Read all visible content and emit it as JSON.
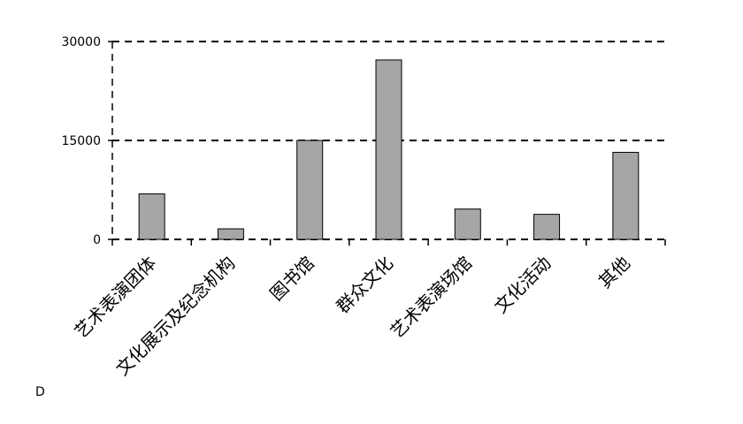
{
  "chart_data": {
    "type": "bar",
    "categories": [
      "艺术表演团体",
      "文化展示及纪念机构",
      "图书馆",
      "群众文化",
      "艺术表演场馆",
      "文化活动",
      "其他"
    ],
    "values": [
      6900,
      1600,
      15000,
      27200,
      4600,
      3800,
      13200
    ],
    "yticks": [
      "0",
      "15000",
      "30000"
    ],
    "ylim": [
      0,
      30000
    ],
    "grid": true,
    "bar_color": "#a6a6a6",
    "title": "",
    "xlabel": "",
    "ylabel": ""
  },
  "footnote": "D"
}
